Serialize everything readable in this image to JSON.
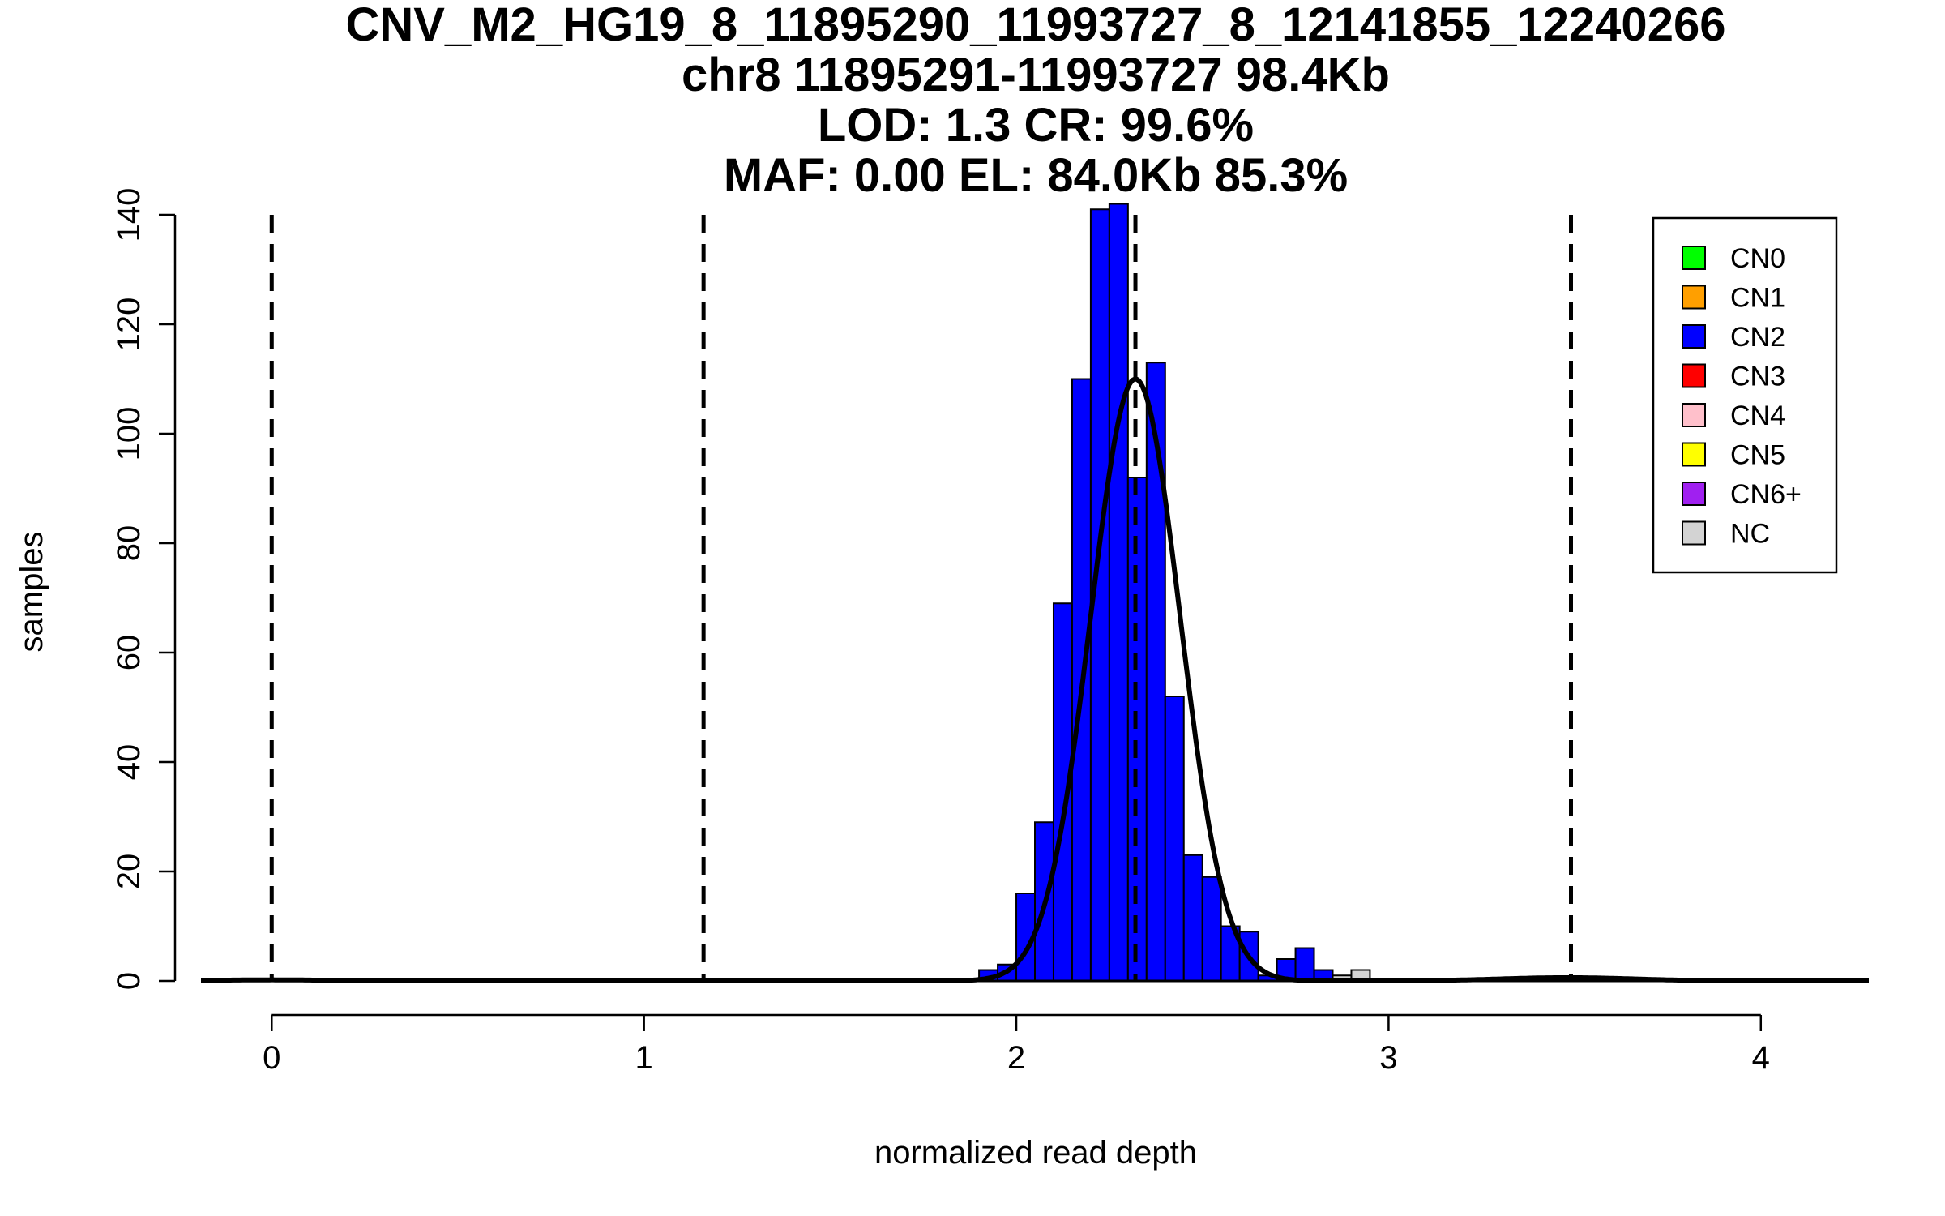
{
  "chart_data": {
    "type": "bar",
    "title_lines": [
      "CNV_M2_HG19_8_11895290_11993727_8_12141855_12240266",
      "chr8 11895291-11993727 98.4Kb",
      "LOD: 1.3 CR: 99.6%",
      "MAF: 0.00 EL: 84.0Kb 85.3%"
    ],
    "xlabel": "normalized read depth",
    "ylabel": "samples",
    "xlim": [
      -0.19,
      4.29
    ],
    "ylim": [
      0,
      140
    ],
    "x_ticks": [
      0,
      1,
      2,
      3,
      4
    ],
    "y_ticks": [
      0,
      20,
      40,
      60,
      80,
      100,
      120,
      140
    ],
    "bin_width": 0.05,
    "bins": [
      {
        "x0": 1.9,
        "count": 2,
        "class": "CN2"
      },
      {
        "x0": 1.95,
        "count": 3,
        "class": "CN2"
      },
      {
        "x0": 2.0,
        "count": 16,
        "class": "CN2"
      },
      {
        "x0": 2.05,
        "count": 29,
        "class": "CN2"
      },
      {
        "x0": 2.1,
        "count": 69,
        "class": "CN2"
      },
      {
        "x0": 2.15,
        "count": 110,
        "class": "CN2"
      },
      {
        "x0": 2.2,
        "count": 141,
        "class": "CN2"
      },
      {
        "x0": 2.25,
        "count": 142,
        "class": "CN2"
      },
      {
        "x0": 2.3,
        "count": 92,
        "class": "CN2"
      },
      {
        "x0": 2.35,
        "count": 113,
        "class": "CN2"
      },
      {
        "x0": 2.4,
        "count": 52,
        "class": "CN2"
      },
      {
        "x0": 2.45,
        "count": 23,
        "class": "CN2"
      },
      {
        "x0": 2.5,
        "count": 19,
        "class": "CN2"
      },
      {
        "x0": 2.55,
        "count": 10,
        "class": "CN2"
      },
      {
        "x0": 2.6,
        "count": 9,
        "class": "CN2"
      },
      {
        "x0": 2.65,
        "count": 1,
        "class": "CN2"
      },
      {
        "x0": 2.7,
        "count": 4,
        "class": "CN2"
      },
      {
        "x0": 2.75,
        "count": 6,
        "class": "CN2"
      },
      {
        "x0": 2.8,
        "count": 2,
        "class": "CN2"
      },
      {
        "x0": 2.85,
        "count": 1,
        "class": "NC"
      },
      {
        "x0": 2.9,
        "count": 2,
        "class": "NC"
      }
    ],
    "dashed_lines_x": [
      0,
      1.16,
      2.32,
      3.49
    ],
    "fit_curves": [
      {
        "mean": 2.32,
        "sd": 0.12,
        "peak": 110
      },
      {
        "mean": 3.48,
        "sd": 0.18,
        "peak": 0.6
      },
      {
        "mean": 1.16,
        "sd": 0.3,
        "peak": 0.15
      },
      {
        "mean": 0.0,
        "sd": 0.15,
        "peak": 0.2
      }
    ],
    "legend": {
      "position": "top-right",
      "items": [
        {
          "label": "CN0",
          "color": "#00ff00"
        },
        {
          "label": "CN1",
          "color": "#ff9f00"
        },
        {
          "label": "CN2",
          "color": "#0000ff"
        },
        {
          "label": "CN3",
          "color": "#ff0000"
        },
        {
          "label": "CN4",
          "color": "#ffc0cb"
        },
        {
          "label": "CN5",
          "color": "#ffff00"
        },
        {
          "label": "CN6+",
          "color": "#a020f0"
        },
        {
          "label": "NC",
          "color": "#d3d3d3"
        }
      ]
    }
  }
}
